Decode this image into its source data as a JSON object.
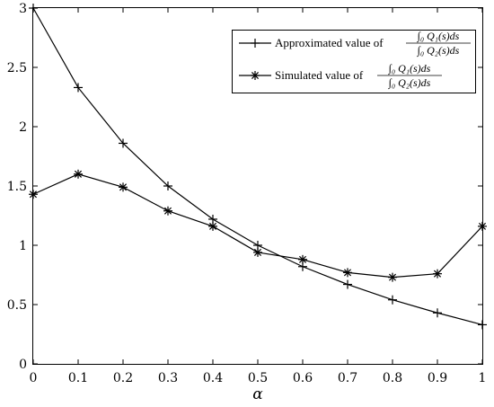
{
  "chart_data": {
    "type": "line",
    "x": [
      0,
      0.1,
      0.2,
      0.3,
      0.4,
      0.5,
      0.6,
      0.7,
      0.8,
      0.9,
      1
    ],
    "xlabel": "α",
    "ylabel": "",
    "title": "",
    "xlim": [
      0,
      1
    ],
    "ylim": [
      0,
      3
    ],
    "xticks": [
      "0",
      "0.1",
      "0.2",
      "0.3",
      "0.4",
      "0.5",
      "0.6",
      "0.7",
      "0.8",
      "0.9",
      "1"
    ],
    "yticks": [
      "0",
      "0.5",
      "1",
      "1.5",
      "2",
      "2.5",
      "3"
    ],
    "grid": false,
    "legend_position": "top-right",
    "series": [
      {
        "name": "Approximated value of ∫₀ Q₁(s)ds / ∫₀ Q₂(s)ds",
        "name_prefix": "Approximated value of",
        "marker": "plus",
        "values": [
          3.0,
          2.33,
          1.86,
          1.5,
          1.22,
          1.0,
          0.82,
          0.67,
          0.54,
          0.43,
          0.33
        ]
      },
      {
        "name": "Simulated value of ∫₀ Q₁(s)ds / ∫₀ Q₂(s)ds",
        "name_prefix": "Simulated value of",
        "marker": "asterisk",
        "values": [
          1.43,
          1.6,
          1.49,
          1.29,
          1.16,
          0.94,
          0.88,
          0.77,
          0.73,
          0.76,
          1.16
        ]
      }
    ],
    "legend_fraction": {
      "numerator": "∫₀ Q₁(s)ds",
      "denominator": "∫₀ Q₂(s)ds"
    }
  }
}
